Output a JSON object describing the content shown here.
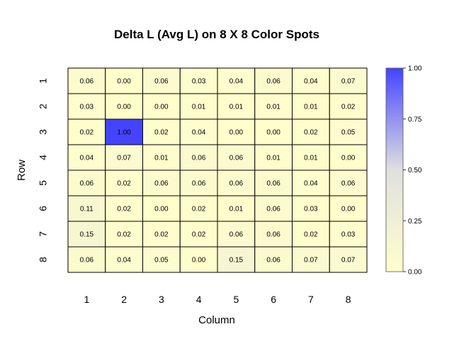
{
  "chart_data": {
    "type": "heatmap",
    "title": "Delta L (Avg L) on 8 X 8 Color Spots",
    "xlabel": "Column",
    "ylabel": "Row",
    "x_categories": [
      "1",
      "2",
      "3",
      "4",
      "5",
      "6",
      "7",
      "8"
    ],
    "y_categories": [
      "1",
      "2",
      "3",
      "4",
      "5",
      "6",
      "7",
      "8"
    ],
    "values": [
      [
        0.06,
        0.0,
        0.06,
        0.03,
        0.04,
        0.06,
        0.04,
        0.07
      ],
      [
        0.03,
        0.0,
        0.0,
        0.01,
        0.01,
        0.01,
        0.01,
        0.02
      ],
      [
        0.02,
        1.0,
        0.02,
        0.04,
        0.0,
        0.0,
        0.02,
        0.05
      ],
      [
        0.04,
        0.07,
        0.01,
        0.06,
        0.06,
        0.01,
        0.01,
        0.0
      ],
      [
        0.06,
        0.02,
        0.06,
        0.06,
        0.06,
        0.06,
        0.04,
        0.06
      ],
      [
        0.11,
        0.02,
        0.0,
        0.02,
        0.01,
        0.06,
        0.03,
        0.0
      ],
      [
        0.15,
        0.02,
        0.02,
        0.02,
        0.06,
        0.06,
        0.02,
        0.03
      ],
      [
        0.06,
        0.04,
        0.05,
        0.0,
        0.15,
        0.06,
        0.07,
        0.07
      ]
    ],
    "value_range": [
      0,
      1
    ],
    "colorbar": {
      "ticks": [
        "0.00",
        "0.25",
        "0.50",
        "0.75",
        "1.00"
      ],
      "colors": [
        "#ffffcc",
        "#e0e0e0",
        "#4444ff"
      ]
    }
  }
}
